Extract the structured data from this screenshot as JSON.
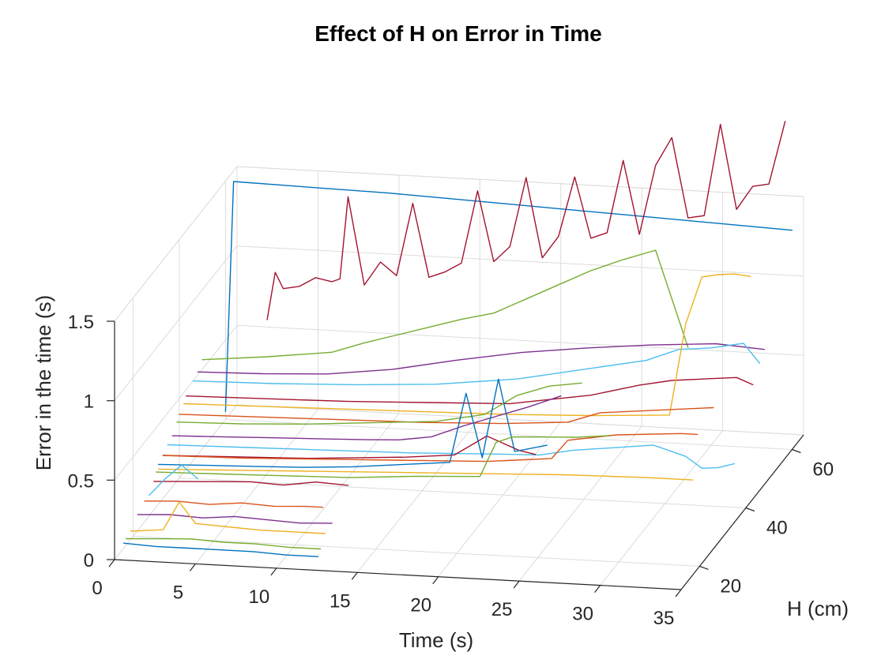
{
  "chart_data": {
    "type": "line",
    "title": "Effect of H on  Error in Time",
    "xlabel": "Time (s)",
    "ylabel": "H (cm)",
    "zlabel": "Error in the time (s)",
    "xlim": [
      0,
      35
    ],
    "ylim": [
      12,
      65
    ],
    "zlim": [
      0,
      1.5
    ],
    "x_ticks": [
      0,
      5,
      10,
      15,
      20,
      25,
      30,
      35
    ],
    "y_ticks": [
      20,
      40,
      60
    ],
    "z_ticks": [
      0,
      0.5,
      1,
      1.5
    ],
    "x_tick_labels": [
      "0",
      "5",
      "10",
      "15",
      "20",
      "25",
      "30",
      "35"
    ],
    "y_tick_labels": [
      "20",
      "40",
      "60"
    ],
    "z_tick_labels": [
      "0",
      "0.5",
      "1",
      "1.5"
    ],
    "grid": true,
    "legend": "none",
    "series": [
      {
        "color": "#0072BD",
        "h": 16,
        "x": [
          0,
          2,
          4,
          6,
          8,
          10,
          12
        ],
        "z": [
          0.03,
          0.02,
          0.02,
          0.02,
          0.02,
          0.01,
          0.01
        ]
      },
      {
        "color": "#77AC30",
        "h": 17,
        "x": [
          0,
          2,
          4,
          6,
          8,
          10,
          12
        ],
        "z": [
          0.04,
          0.05,
          0.06,
          0.05,
          0.05,
          0.04,
          0.04
        ]
      },
      {
        "color": "#EDB120",
        "h": 19,
        "x": [
          0,
          1,
          2,
          3,
          4,
          6,
          8,
          10,
          12
        ],
        "z": [
          0.05,
          0.06,
          0.07,
          0.25,
          0.12,
          0.11,
          0.1,
          0.1,
          0.1
        ]
      },
      {
        "color": "#7E2F8E",
        "h": 22,
        "x": [
          0,
          2,
          4,
          6,
          8,
          10,
          12
        ],
        "z": [
          0.1,
          0.11,
          0.1,
          0.12,
          0.11,
          0.1,
          0.11
        ]
      },
      {
        "color": "#D95319",
        "h": 25,
        "x": [
          0,
          2,
          4,
          6,
          8,
          10,
          11
        ],
        "z": [
          0.13,
          0.14,
          0.13,
          0.15,
          0.14,
          0.15,
          0.15
        ]
      },
      {
        "color": "#4DBEEE",
        "h": 27,
        "x": [
          0,
          1,
          2,
          3
        ],
        "z": [
          0.13,
          0.24,
          0.33,
          0.25
        ]
      },
      {
        "color": "#A2142F",
        "h": 29,
        "x": [
          0,
          2,
          4,
          6,
          8,
          10,
          12
        ],
        "z": [
          0.18,
          0.19,
          0.2,
          0.21,
          0.2,
          0.23,
          0.22
        ]
      },
      {
        "color": "#77AC30",
        "h": 30,
        "x": [
          0,
          4,
          8,
          12,
          16,
          20,
          21,
          22,
          24,
          26,
          28
        ],
        "z": [
          0.22,
          0.23,
          0.24,
          0.25,
          0.28,
          0.3,
          0.52,
          0.56,
          0.57,
          0.58,
          0.6
        ]
      },
      {
        "color": "#0072BD",
        "h": 31,
        "x": [
          0,
          3,
          6,
          9,
          12,
          15,
          18,
          19,
          20,
          21,
          22,
          24
        ],
        "z": [
          0.25,
          0.26,
          0.27,
          0.28,
          0.3,
          0.33,
          0.36,
          0.8,
          0.4,
          0.9,
          0.45,
          0.5
        ]
      },
      {
        "color": "#EDB120",
        "h": 31,
        "x": [
          0,
          5,
          10,
          15,
          20,
          25,
          30,
          33
        ],
        "z": [
          0.22,
          0.24,
          0.26,
          0.28,
          0.3,
          0.32,
          0.33,
          0.33
        ]
      },
      {
        "color": "#A2142F",
        "h": 33,
        "x": [
          0,
          3,
          6,
          9,
          12,
          15,
          18,
          20,
          22,
          23
        ],
        "z": [
          0.27,
          0.28,
          0.29,
          0.3,
          0.32,
          0.34,
          0.37,
          0.5,
          0.42,
          0.4
        ]
      },
      {
        "color": "#D95319",
        "h": 33,
        "x": [
          0,
          5,
          10,
          15,
          20,
          24,
          25,
          28,
          32,
          33
        ],
        "z": [
          0.27,
          0.28,
          0.3,
          0.32,
          0.34,
          0.38,
          0.5,
          0.55,
          0.58,
          0.58
        ]
      },
      {
        "color": "#4DBEEE",
        "h": 35,
        "x": [
          0,
          5,
          10,
          15,
          20,
          23,
          25,
          30,
          32,
          33,
          34,
          35
        ],
        "z": [
          0.3,
          0.31,
          0.32,
          0.33,
          0.35,
          0.36,
          0.4,
          0.46,
          0.4,
          0.33,
          0.34,
          0.37
        ]
      },
      {
        "color": "#7E2F8E",
        "h": 37,
        "x": [
          0,
          3,
          6,
          9,
          12,
          14,
          16,
          18,
          20,
          22,
          24
        ],
        "z": [
          0.32,
          0.33,
          0.34,
          0.35,
          0.36,
          0.37,
          0.4,
          0.48,
          0.55,
          0.62,
          0.7
        ]
      },
      {
        "color": "#77AC30",
        "h": 39,
        "x": [
          0,
          4,
          8,
          12,
          16,
          19,
          21,
          23,
          25
        ],
        "z": [
          0.37,
          0.38,
          0.4,
          0.43,
          0.46,
          0.52,
          0.65,
          0.72,
          0.75
        ]
      },
      {
        "color": "#D95319",
        "h": 40,
        "x": [
          0,
          5,
          10,
          15,
          20,
          24,
          26,
          29,
          31,
          33
        ],
        "z": [
          0.4,
          0.41,
          0.42,
          0.43,
          0.45,
          0.48,
          0.55,
          0.58,
          0.6,
          0.62
        ]
      },
      {
        "color": "#EDB120",
        "h": 42,
        "x": [
          0,
          5,
          10,
          15,
          20,
          25,
          30,
          31,
          32,
          33,
          34,
          35
        ],
        "z": [
          0.43,
          0.44,
          0.45,
          0.46,
          0.47,
          0.49,
          0.52,
          1.1,
          1.4,
          1.42,
          1.43,
          1.42
        ]
      },
      {
        "color": "#A2142F",
        "h": 43,
        "x": [
          0,
          5,
          10,
          15,
          20,
          25,
          28,
          30,
          32,
          34,
          35
        ],
        "z": [
          0.46,
          0.47,
          0.48,
          0.5,
          0.52,
          0.6,
          0.68,
          0.72,
          0.74,
          0.76,
          0.72
        ]
      },
      {
        "color": "#4DBEEE",
        "h": 46,
        "x": [
          0,
          5,
          10,
          15,
          20,
          25,
          28,
          30,
          32,
          34,
          35
        ],
        "z": [
          0.5,
          0.51,
          0.53,
          0.56,
          0.62,
          0.72,
          0.78,
          0.86,
          0.88,
          0.92,
          0.8
        ]
      },
      {
        "color": "#7E2F8E",
        "h": 48,
        "x": [
          0,
          4,
          8,
          12,
          16,
          20,
          24,
          28,
          32,
          35
        ],
        "z": [
          0.52,
          0.53,
          0.55,
          0.6,
          0.68,
          0.75,
          0.8,
          0.84,
          0.87,
          0.85
        ]
      },
      {
        "color": "#77AC30",
        "h": 50,
        "x": [
          0,
          4,
          8,
          10,
          12,
          14,
          16,
          18,
          20,
          22,
          24,
          26,
          28,
          30
        ],
        "z": [
          0.56,
          0.6,
          0.65,
          0.72,
          0.78,
          0.84,
          0.9,
          0.95,
          1.05,
          1.15,
          1.25,
          1.33,
          1.4,
          0.8
        ]
      },
      {
        "color": "#A2142F",
        "h": 57,
        "x": [
          3,
          3.5,
          4,
          5,
          6,
          7,
          7.5,
          8,
          9,
          10,
          11,
          12,
          13,
          14,
          15,
          16,
          17,
          18,
          19,
          20,
          21,
          22,
          23,
          24,
          25,
          26,
          27,
          28,
          29,
          30,
          31,
          32,
          33,
          34,
          35
        ],
        "z": [
          0.7,
          1.0,
          0.9,
          0.92,
          0.98,
          0.96,
          0.98,
          1.5,
          0.95,
          1.1,
          1.02,
          1.48,
          1.02,
          1.06,
          1.12,
          1.58,
          1.14,
          1.24,
          1.68,
          1.18,
          1.32,
          1.7,
          1.32,
          1.36,
          1.82,
          1.36,
          1.8,
          1.98,
          1.48,
          1.5,
          2.08,
          1.55,
          1.7,
          1.72,
          2.12
        ]
      },
      {
        "color": "#0072BD",
        "h": 60,
        "x": [
          0,
          0.5,
          5,
          10,
          15,
          20,
          25,
          30,
          35
        ],
        "z": [
          0.05,
          1.5,
          1.49,
          1.48,
          1.46,
          1.44,
          1.42,
          1.4,
          1.38
        ]
      }
    ]
  }
}
